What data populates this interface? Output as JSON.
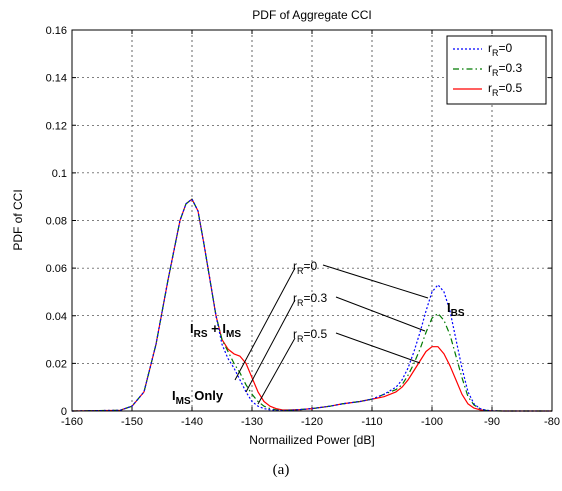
{
  "caption": "(a)",
  "chart_data": {
    "type": "line",
    "title": "PDF of Aggregate CCI",
    "xlabel": "Normailized Power [dB]",
    "ylabel": "PDF of CCI",
    "xlim": [
      -160,
      -80
    ],
    "ylim": [
      0,
      0.16
    ],
    "xticks": [
      "-160",
      "-150",
      "-140",
      "-130",
      "-120",
      "-110",
      "-100",
      "-90",
      "-80"
    ],
    "yticks": [
      "0",
      "0.02",
      "0.04",
      "0.06",
      "0.08",
      "0.1",
      "0.12",
      "0.14",
      "0.16"
    ],
    "grid": true,
    "legend_position": "top-right",
    "series": [
      {
        "name": "r_R=0",
        "label_main": "r",
        "label_sub": "R",
        "label_rest": "=0",
        "color": "#0000ff",
        "style": "dotted",
        "x": [
          -160,
          -152,
          -150,
          -148,
          -146,
          -144,
          -142,
          -141,
          -140,
          -139,
          -138,
          -136,
          -135,
          -134,
          -133,
          -132,
          -131,
          -130,
          -129,
          -128,
          -127,
          -126,
          -125,
          -124,
          -122,
          -120,
          -117,
          -115,
          -112,
          -110,
          -108,
          -106,
          -105,
          -104,
          -103,
          -102,
          -101,
          -100,
          -99,
          -98,
          -97,
          -96,
          -95,
          -94,
          -93,
          -92,
          -91,
          -90,
          -88,
          -80
        ],
        "y": [
          0,
          0.0003,
          0.002,
          0.008,
          0.028,
          0.055,
          0.08,
          0.087,
          0.089,
          0.084,
          0.07,
          0.04,
          0.028,
          0.022,
          0.018,
          0.013,
          0.008,
          0.004,
          0.002,
          0.001,
          0.0005,
          0.0003,
          0.0002,
          0.0003,
          0.0006,
          0.001,
          0.002,
          0.003,
          0.004,
          0.005,
          0.007,
          0.01,
          0.013,
          0.018,
          0.025,
          0.033,
          0.042,
          0.05,
          0.053,
          0.05,
          0.042,
          0.03,
          0.018,
          0.008,
          0.003,
          0.001,
          0.0003,
          0.0001,
          0,
          0
        ]
      },
      {
        "name": "r_R=0.3",
        "label_main": "r",
        "label_sub": "R",
        "label_rest": "=0.3",
        "color": "#007a00",
        "style": "dashdot",
        "x": [
          -160,
          -152,
          -150,
          -148,
          -146,
          -144,
          -142,
          -141,
          -140,
          -139,
          -138,
          -136,
          -135,
          -134,
          -133,
          -132,
          -131,
          -130,
          -129,
          -128,
          -127,
          -126,
          -125,
          -124,
          -122,
          -120,
          -117,
          -115,
          -112,
          -110,
          -108,
          -106,
          -105,
          -104,
          -103,
          -102,
          -101,
          -100,
          -99,
          -98,
          -97,
          -96,
          -95,
          -94,
          -93,
          -92,
          -91,
          -90,
          -88,
          -80
        ],
        "y": [
          0,
          0.0003,
          0.002,
          0.008,
          0.028,
          0.055,
          0.08,
          0.087,
          0.089,
          0.084,
          0.07,
          0.04,
          0.03,
          0.025,
          0.02,
          0.016,
          0.011,
          0.007,
          0.004,
          0.002,
          0.001,
          0.0005,
          0.0003,
          0.0003,
          0.0006,
          0.001,
          0.002,
          0.003,
          0.004,
          0.005,
          0.007,
          0.009,
          0.011,
          0.015,
          0.02,
          0.026,
          0.033,
          0.039,
          0.041,
          0.038,
          0.032,
          0.023,
          0.014,
          0.006,
          0.0025,
          0.001,
          0.0003,
          0.0001,
          0,
          0
        ]
      },
      {
        "name": "r_R=0.5",
        "label_main": "r",
        "label_sub": "R",
        "label_rest": "=0.5",
        "color": "#ff0000",
        "style": "solid",
        "x": [
          -160,
          -152,
          -150,
          -148,
          -146,
          -144,
          -142,
          -141,
          -140,
          -139,
          -138,
          -136,
          -135,
          -134,
          -133,
          -132,
          -131,
          -130,
          -129,
          -128,
          -127,
          -126,
          -125,
          -124,
          -122,
          -120,
          -117,
          -115,
          -112,
          -110,
          -108,
          -106,
          -105,
          -104,
          -103,
          -102,
          -101,
          -100,
          -99,
          -98,
          -97,
          -96,
          -95,
          -94,
          -93,
          -92,
          -91,
          -90,
          -88,
          -80
        ],
        "y": [
          0,
          0.0003,
          0.002,
          0.008,
          0.028,
          0.055,
          0.08,
          0.087,
          0.089,
          0.084,
          0.07,
          0.04,
          0.03,
          0.026,
          0.024,
          0.023,
          0.02,
          0.014,
          0.008,
          0.004,
          0.002,
          0.001,
          0.0005,
          0.0004,
          0.0006,
          0.001,
          0.002,
          0.003,
          0.004,
          0.005,
          0.006,
          0.008,
          0.01,
          0.013,
          0.017,
          0.021,
          0.025,
          0.027,
          0.027,
          0.024,
          0.019,
          0.013,
          0.007,
          0.003,
          0.0012,
          0.0005,
          0.0002,
          0.0001,
          0,
          0
        ]
      }
    ],
    "annotations": {
      "curve_labels": [
        {
          "main": "r",
          "sub": "R",
          "rest": "=0"
        },
        {
          "main": "r",
          "sub": "R",
          "rest": "=0.3"
        },
        {
          "main": "r",
          "sub": "R",
          "rest": "=0.5"
        }
      ],
      "ibs": {
        "main": "I",
        "sub": "BS"
      },
      "irs_ims": {
        "main1": "I",
        "sub1": "RS",
        "plus": " + ",
        "main2": "I",
        "sub2": "MS"
      },
      "ims_only": {
        "main": "I",
        "sub": "MS",
        "rest": " Only"
      }
    }
  }
}
